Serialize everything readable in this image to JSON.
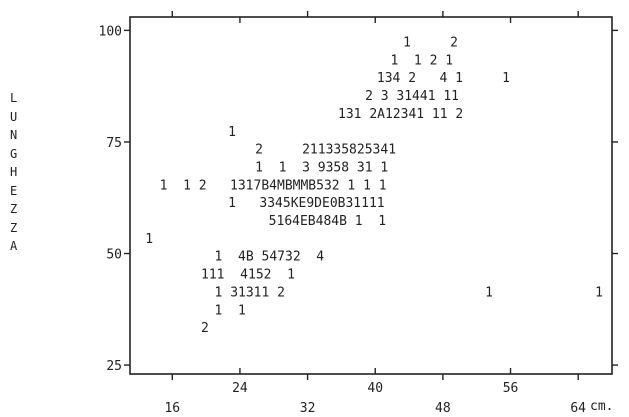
{
  "chart_data": {
    "type": "scatter",
    "xlabel_unit": "cm.",
    "ylabel_letters": [
      "L",
      "U",
      "N",
      "G",
      "H",
      "E",
      "Z",
      "Z",
      "A"
    ],
    "xlim": [
      11,
      68
    ],
    "ylim": [
      23,
      103
    ],
    "x_ticks_bottom": [
      "16",
      "32",
      "48",
      "64"
    ],
    "x_ticks_top": [
      "24",
      "40",
      "56"
    ],
    "x_ticks_bottom_values": [
      16,
      32,
      48,
      64
    ],
    "x_ticks_top_values": [
      24,
      40,
      56
    ],
    "y_ticks": [
      "100",
      "75",
      "50",
      "25"
    ],
    "y_ticks_values": [
      100,
      75,
      50,
      25
    ],
    "grid": false,
    "rows": [
      {
        "y": 97.5,
        "x": 43.3,
        "text": "1     2"
      },
      {
        "y": 93.5,
        "x": 41.8,
        "text": "1  1 2 1"
      },
      {
        "y": 89.5,
        "x": 40.2,
        "text": "134 2   4 1     1"
      },
      {
        "y": 85.5,
        "x": 38.8,
        "text": "2 3 31441 11"
      },
      {
        "y": 81.5,
        "x": 35.6,
        "text": "131 2A12341 11 2"
      },
      {
        "y": 77.5,
        "x": 22.6,
        "text": "1"
      },
      {
        "y": 73.5,
        "x": 25.8,
        "text": "2     211335825341"
      },
      {
        "y": 69.5,
        "x": 25.8,
        "text": "1  1  3 9358 31 1"
      },
      {
        "y": 65.5,
        "x": 14.5,
        "text": "1  1 2   1317B4MBMMB532 1 1 1"
      },
      {
        "y": 61.5,
        "x": 22.6,
        "text": "1   3345KE9DE0B31111"
      },
      {
        "y": 57.5,
        "x": 27.4,
        "text": "5164EB484B 1  1"
      },
      {
        "y": 53.5,
        "x": 12.8,
        "text": "1"
      },
      {
        "y": 49.5,
        "x": 21.0,
        "text": "1  4B 54732  4"
      },
      {
        "y": 45.5,
        "x": 19.4,
        "text": "111  4152  1"
      },
      {
        "y": 41.5,
        "x": 21.0,
        "text": "1 31311 2"
      },
      {
        "y": 41.5,
        "x": 53.0,
        "text": "1"
      },
      {
        "y": 41.5,
        "x": 66.0,
        "text": "1"
      },
      {
        "y": 37.5,
        "x": 21.0,
        "text": "1  1"
      },
      {
        "y": 33.5,
        "x": 19.4,
        "text": "2"
      }
    ]
  }
}
